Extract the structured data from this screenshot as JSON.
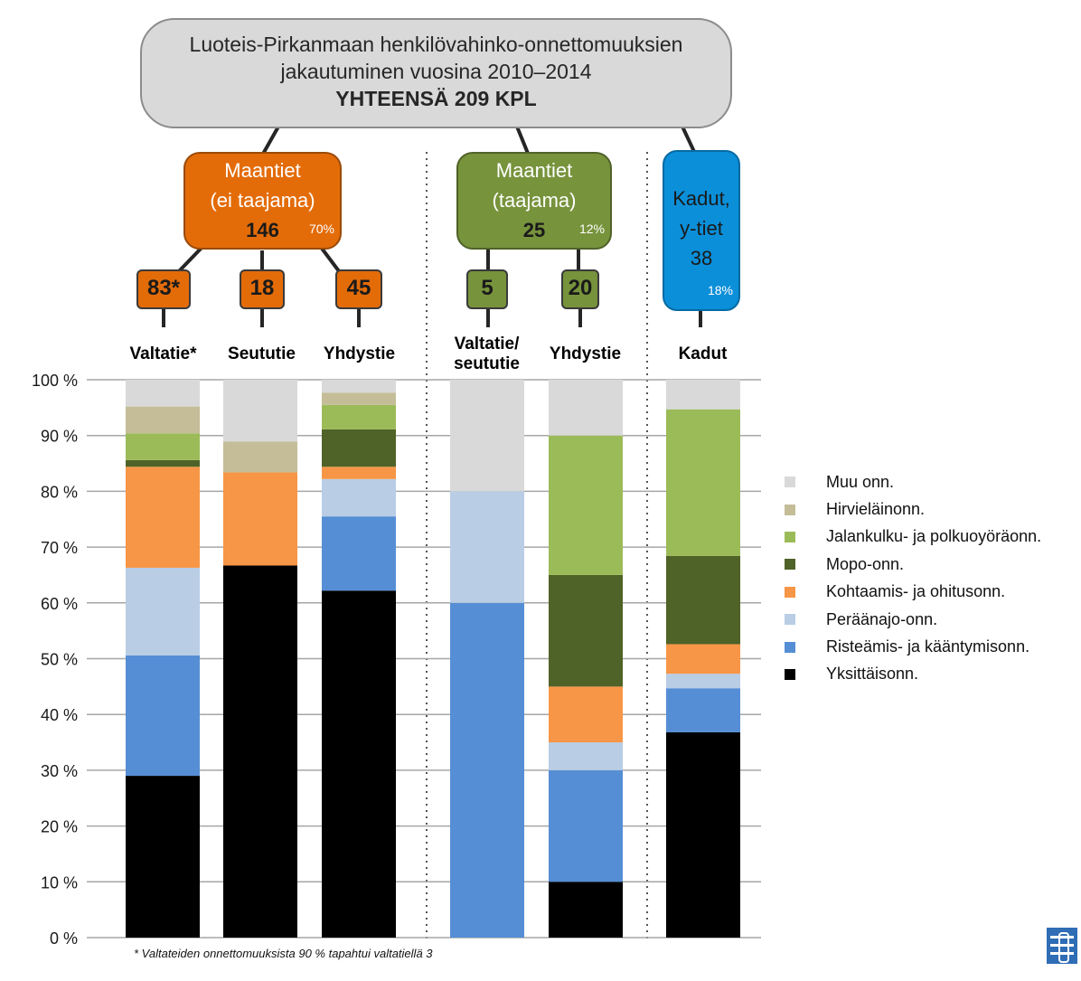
{
  "title": {
    "line1": "Luoteis-Pirkanmaan henkilövahinko-onnettomuuksien",
    "line2": "jakautuminen vuosina 2010–2014",
    "line3": "YHTEENSÄ 209 KPL"
  },
  "groups": [
    {
      "label1": "Maantiet",
      "label2": "(ei taajama)",
      "count": "146",
      "percent": "70%",
      "color": "#e36c09"
    },
    {
      "label1": "Maantiet",
      "label2": "(taajama)",
      "count": "25",
      "percent": "12%",
      "color": "#77933c"
    },
    {
      "label1": "Kadut,",
      "label2": "y-tiet",
      "count": "38",
      "percent": "18%",
      "color": "#0b8fd9"
    }
  ],
  "subgroups": [
    {
      "count": "83*",
      "color": "#e36c09"
    },
    {
      "count": "18",
      "color": "#e36c09"
    },
    {
      "count": "45",
      "color": "#e36c09"
    },
    {
      "count": "5",
      "color": "#77933c"
    },
    {
      "count": "20",
      "color": "#77933c"
    }
  ],
  "footnote": "* Valtateiden onnettomuuksista 90 % tapahtui valtatiellä 3",
  "chart_data": {
    "type": "bar",
    "stacked": true,
    "categories": [
      "Valtatie*",
      "Seututie",
      "Yhdystie",
      "Valtatie/ seututie",
      "Yhdystie",
      "Kadut"
    ],
    "category_lines": [
      [
        "Valtatie*"
      ],
      [
        "Seututie"
      ],
      [
        "Yhdystie"
      ],
      [
        "Valtatie/",
        "seututie"
      ],
      [
        "Yhdystie"
      ],
      [
        "Kadut"
      ]
    ],
    "ylim": [
      0,
      100
    ],
    "yticks": [
      "0 %",
      "10 %",
      "20 %",
      "30 %",
      "40 %",
      "50 %",
      "60 %",
      "70 %",
      "80 %",
      "90 %",
      "100 %"
    ],
    "grid": true,
    "legend_position": "right",
    "series": [
      {
        "name": "Yksittäisonn.",
        "color": "#000000",
        "values": [
          29,
          66.7,
          62.2,
          0,
          10,
          36.8
        ]
      },
      {
        "name": "Risteämis- ja kääntymisonn.",
        "color": "#558ed5",
        "values": [
          21.6,
          0,
          13.3,
          60,
          20,
          7.9
        ]
      },
      {
        "name": "Peräänajo-onn.",
        "color": "#b9cde5",
        "values": [
          15.7,
          0,
          6.7,
          20,
          5,
          2.6
        ]
      },
      {
        "name": "Kohtaamis- ja ohitusonn.",
        "color": "#f79646",
        "values": [
          18.1,
          16.7,
          2.2,
          0,
          10,
          5.3
        ]
      },
      {
        "name": "Mopo-onn.",
        "color": "#4f6228",
        "values": [
          1.2,
          0,
          6.7,
          0,
          20,
          15.8
        ]
      },
      {
        "name": "Jalankulku- ja polkuoyöräonn.",
        "color": "#9bbb59",
        "values": [
          4.8,
          0,
          4.4,
          0,
          25,
          26.3
        ]
      },
      {
        "name": "Hirvieläinonn.",
        "color": "#c4bd97",
        "values": [
          4.8,
          5.5,
          2.2,
          0,
          0,
          0
        ]
      },
      {
        "name": "Muu onn.",
        "color": "#d9d9d9",
        "values": [
          4.8,
          11.1,
          2.3,
          20,
          10,
          5.3
        ]
      }
    ]
  }
}
